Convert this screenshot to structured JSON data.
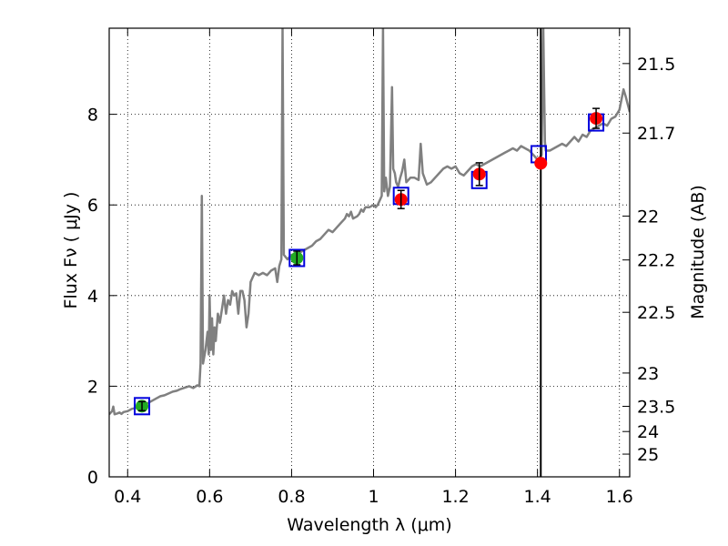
{
  "chart_data": {
    "type": "line",
    "xlabel": "Wavelength  λ (μm)",
    "ylabel": "Flux  Fν  ( μJy )",
    "ylabel_right": "Magnitude (AB)",
    "xlim": [
      0.355,
      1.625
    ],
    "ylim": [
      0,
      9.9
    ],
    "grid": true,
    "x_ticks": [
      0.4,
      0.6,
      0.8,
      1.0,
      1.2,
      1.4,
      1.6
    ],
    "x_tick_labels": [
      "0.4",
      "0.6",
      "0.8",
      "1",
      "1.2",
      "1.4",
      "1.6"
    ],
    "y_ticks": [
      0,
      2,
      4,
      6,
      8
    ],
    "y_tick_labels": [
      "0",
      "2",
      "4",
      "6",
      "8"
    ],
    "right_ticks": [
      {
        "label": "21.5",
        "mag": 21.5
      },
      {
        "label": "21.7",
        "mag": 21.7
      },
      {
        "label": "22",
        "mag": 22.0
      },
      {
        "label": "22.2",
        "mag": 22.2
      },
      {
        "label": "22.5",
        "mag": 22.5
      },
      {
        "label": "23",
        "mag": 23.0
      },
      {
        "label": "23.5",
        "mag": 23.42
      },
      {
        "label": "24",
        "mag": 23.9
      },
      {
        "label": "25",
        "mag": 24.65
      }
    ],
    "vertical_line_x": 1.408,
    "series": [
      {
        "role": "model-spectrum",
        "color": "#808080",
        "points": [
          [
            0.355,
            1.38
          ],
          [
            0.362,
            1.45
          ],
          [
            0.365,
            1.55
          ],
          [
            0.368,
            1.38
          ],
          [
            0.375,
            1.4
          ],
          [
            0.38,
            1.42
          ],
          [
            0.385,
            1.39
          ],
          [
            0.39,
            1.43
          ],
          [
            0.4,
            1.45
          ],
          [
            0.41,
            1.5
          ],
          [
            0.42,
            1.52
          ],
          [
            0.43,
            1.56
          ],
          [
            0.44,
            1.6
          ],
          [
            0.45,
            1.63
          ],
          [
            0.46,
            1.68
          ],
          [
            0.47,
            1.73
          ],
          [
            0.48,
            1.78
          ],
          [
            0.49,
            1.8
          ],
          [
            0.5,
            1.84
          ],
          [
            0.51,
            1.88
          ],
          [
            0.52,
            1.9
          ],
          [
            0.53,
            1.94
          ],
          [
            0.54,
            1.97
          ],
          [
            0.55,
            2.0
          ],
          [
            0.56,
            1.96
          ],
          [
            0.57,
            2.02
          ],
          [
            0.575,
            2.0
          ],
          [
            0.578,
            2.5
          ],
          [
            0.581,
            6.2
          ],
          [
            0.584,
            2.5
          ],
          [
            0.59,
            2.8
          ],
          [
            0.595,
            3.2
          ],
          [
            0.598,
            2.7
          ],
          [
            0.6,
            4.0
          ],
          [
            0.603,
            2.8
          ],
          [
            0.606,
            3.5
          ],
          [
            0.609,
            2.7
          ],
          [
            0.612,
            3.3
          ],
          [
            0.615,
            3.0
          ],
          [
            0.62,
            3.6
          ],
          [
            0.625,
            3.4
          ],
          [
            0.63,
            3.7
          ],
          [
            0.635,
            4.0
          ],
          [
            0.64,
            3.6
          ],
          [
            0.645,
            3.9
          ],
          [
            0.65,
            3.8
          ],
          [
            0.655,
            4.1
          ],
          [
            0.66,
            4.0
          ],
          [
            0.665,
            4.05
          ],
          [
            0.67,
            3.6
          ],
          [
            0.675,
            4.1
          ],
          [
            0.68,
            4.1
          ],
          [
            0.685,
            3.9
          ],
          [
            0.69,
            3.3
          ],
          [
            0.695,
            3.6
          ],
          [
            0.7,
            4.3
          ],
          [
            0.705,
            4.4
          ],
          [
            0.71,
            4.5
          ],
          [
            0.72,
            4.45
          ],
          [
            0.73,
            4.5
          ],
          [
            0.74,
            4.45
          ],
          [
            0.75,
            4.55
          ],
          [
            0.76,
            4.6
          ],
          [
            0.765,
            4.3
          ],
          [
            0.77,
            4.65
          ],
          [
            0.775,
            4.8
          ],
          [
            0.778,
            9.9
          ],
          [
            0.781,
            4.9
          ],
          [
            0.79,
            4.8
          ],
          [
            0.8,
            4.9
          ],
          [
            0.81,
            4.85
          ],
          [
            0.82,
            4.95
          ],
          [
            0.83,
            5.0
          ],
          [
            0.84,
            5.05
          ],
          [
            0.85,
            5.1
          ],
          [
            0.86,
            5.2
          ],
          [
            0.87,
            5.25
          ],
          [
            0.88,
            5.35
          ],
          [
            0.89,
            5.45
          ],
          [
            0.9,
            5.4
          ],
          [
            0.91,
            5.5
          ],
          [
            0.92,
            5.6
          ],
          [
            0.93,
            5.7
          ],
          [
            0.935,
            5.8
          ],
          [
            0.94,
            5.75
          ],
          [
            0.945,
            5.85
          ],
          [
            0.95,
            5.7
          ],
          [
            0.96,
            5.75
          ],
          [
            0.965,
            5.8
          ],
          [
            0.97,
            5.9
          ],
          [
            0.975,
            5.85
          ],
          [
            0.98,
            5.95
          ],
          [
            0.99,
            5.95
          ],
          [
            1.0,
            6.0
          ],
          [
            1.005,
            5.95
          ],
          [
            1.01,
            6.0
          ],
          [
            1.015,
            6.1
          ],
          [
            1.02,
            6.2
          ],
          [
            1.023,
            9.9
          ],
          [
            1.026,
            6.3
          ],
          [
            1.03,
            6.6
          ],
          [
            1.035,
            6.2
          ],
          [
            1.04,
            6.4
          ],
          [
            1.045,
            8.6
          ],
          [
            1.048,
            6.8
          ],
          [
            1.052,
            6.7
          ],
          [
            1.055,
            6.5
          ],
          [
            1.06,
            6.4
          ],
          [
            1.065,
            6.6
          ],
          [
            1.07,
            6.75
          ],
          [
            1.075,
            7.0
          ],
          [
            1.08,
            6.5
          ],
          [
            1.09,
            6.6
          ],
          [
            1.1,
            6.6
          ],
          [
            1.11,
            6.55
          ],
          [
            1.115,
            7.35
          ],
          [
            1.12,
            6.7
          ],
          [
            1.13,
            6.45
          ],
          [
            1.14,
            6.5
          ],
          [
            1.15,
            6.6
          ],
          [
            1.16,
            6.7
          ],
          [
            1.17,
            6.8
          ],
          [
            1.18,
            6.85
          ],
          [
            1.19,
            6.8
          ],
          [
            1.2,
            6.85
          ],
          [
            1.21,
            6.7
          ],
          [
            1.22,
            6.65
          ],
          [
            1.23,
            6.75
          ],
          [
            1.24,
            6.85
          ],
          [
            1.25,
            6.9
          ],
          [
            1.26,
            6.85
          ],
          [
            1.27,
            6.9
          ],
          [
            1.28,
            6.95
          ],
          [
            1.29,
            7.0
          ],
          [
            1.3,
            7.05
          ],
          [
            1.31,
            7.1
          ],
          [
            1.32,
            7.15
          ],
          [
            1.33,
            7.2
          ],
          [
            1.34,
            7.25
          ],
          [
            1.35,
            7.2
          ],
          [
            1.36,
            7.3
          ],
          [
            1.37,
            7.25
          ],
          [
            1.38,
            7.2
          ],
          [
            1.39,
            7.1
          ],
          [
            1.4,
            7.0
          ],
          [
            1.405,
            7.05
          ],
          [
            1.41,
            7.1
          ],
          [
            1.414,
            9.9
          ],
          [
            1.418,
            7.4
          ],
          [
            1.42,
            7.2
          ],
          [
            1.43,
            7.2
          ],
          [
            1.44,
            7.25
          ],
          [
            1.45,
            7.3
          ],
          [
            1.46,
            7.35
          ],
          [
            1.47,
            7.3
          ],
          [
            1.48,
            7.4
          ],
          [
            1.49,
            7.5
          ],
          [
            1.5,
            7.4
          ],
          [
            1.51,
            7.55
          ],
          [
            1.52,
            7.5
          ],
          [
            1.53,
            7.65
          ],
          [
            1.54,
            7.7
          ],
          [
            1.55,
            7.75
          ],
          [
            1.56,
            7.8
          ],
          [
            1.57,
            7.75
          ],
          [
            1.58,
            7.9
          ],
          [
            1.59,
            7.95
          ],
          [
            1.6,
            8.1
          ],
          [
            1.61,
            8.55
          ],
          [
            1.615,
            8.4
          ],
          [
            1.625,
            8.05
          ]
        ]
      },
      {
        "role": "model-photometry",
        "color": "#0000dd",
        "marker": "open-square",
        "points": [
          [
            0.435,
            1.56
          ],
          [
            0.813,
            4.83
          ],
          [
            1.067,
            6.2
          ],
          [
            1.258,
            6.55
          ],
          [
            1.403,
            7.12
          ],
          [
            1.543,
            7.82
          ]
        ]
      },
      {
        "role": "observed-photometry-green",
        "color": "#22aa22",
        "marker": "circle",
        "points": [
          [
            0.435,
            1.56,
            0.1
          ],
          [
            0.813,
            4.83,
            0.15
          ]
        ]
      },
      {
        "role": "observed-photometry-red",
        "color": "#ff0000",
        "marker": "circle",
        "points": [
          [
            1.067,
            6.12,
            0.2
          ],
          [
            1.258,
            6.68,
            0.25
          ],
          [
            1.408,
            6.92,
            0
          ],
          [
            1.543,
            7.91,
            0.22
          ]
        ]
      }
    ]
  }
}
